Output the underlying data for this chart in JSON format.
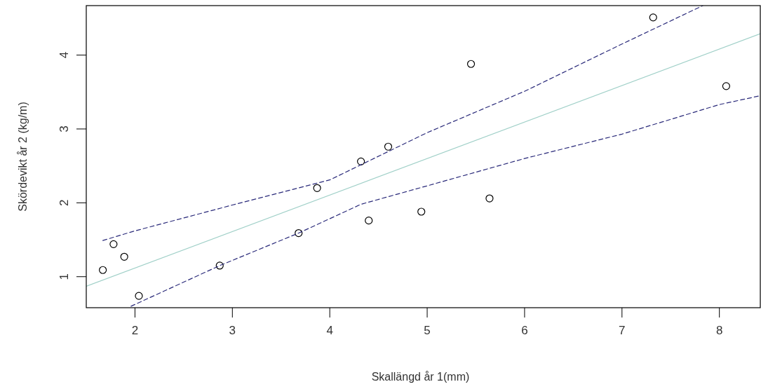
{
  "chart_data": {
    "type": "scatter",
    "xlabel": "Skallängd år 1(mm)",
    "ylabel": "Skördevikt år 2 (kg/m)",
    "xlim": [
      1.5,
      8.42
    ],
    "ylim": [
      0.58,
      4.67
    ],
    "xticks": [
      2,
      3,
      4,
      5,
      6,
      7,
      8
    ],
    "yticks": [
      1,
      2,
      3,
      4
    ],
    "grid": false,
    "marker": "circle",
    "series": [
      {
        "color": "#000000",
        "x": [
          1.67,
          1.78,
          1.89,
          2.04,
          2.87,
          3.68,
          3.87,
          4.32,
          4.4,
          4.6,
          4.94,
          5.45,
          5.64,
          7.32,
          8.07
        ],
        "values": [
          1.09,
          1.44,
          1.27,
          0.74,
          1.15,
          1.59,
          2.2,
          2.56,
          1.76,
          2.76,
          1.88,
          3.88,
          2.06,
          4.51,
          3.58
        ]
      },
      {
        "type": "line",
        "color": "#a0d0c8",
        "line_style": "solid",
        "marker": "none",
        "x": [
          1.5,
          8.42
        ],
        "values": [
          0.87,
          4.29
        ]
      },
      {
        "type": "line",
        "color": "#2a2a7a",
        "line_style": "dashed",
        "marker": "none",
        "x": [
          1.67,
          2,
          3,
          4,
          5,
          6,
          7,
          7.83
        ],
        "values": [
          1.49,
          1.62,
          1.97,
          2.31,
          2.95,
          3.51,
          4.15,
          4.67
        ]
      },
      {
        "type": "line",
        "color": "#2a2a7a",
        "line_style": "dashed",
        "marker": "none",
        "x": [
          1.96,
          2.87,
          3.68,
          4.32,
          5,
          6,
          7,
          8,
          8.42
        ],
        "values": [
          0.6,
          1.15,
          1.59,
          1.98,
          2.23,
          2.6,
          2.93,
          3.33,
          3.45
        ]
      }
    ]
  }
}
